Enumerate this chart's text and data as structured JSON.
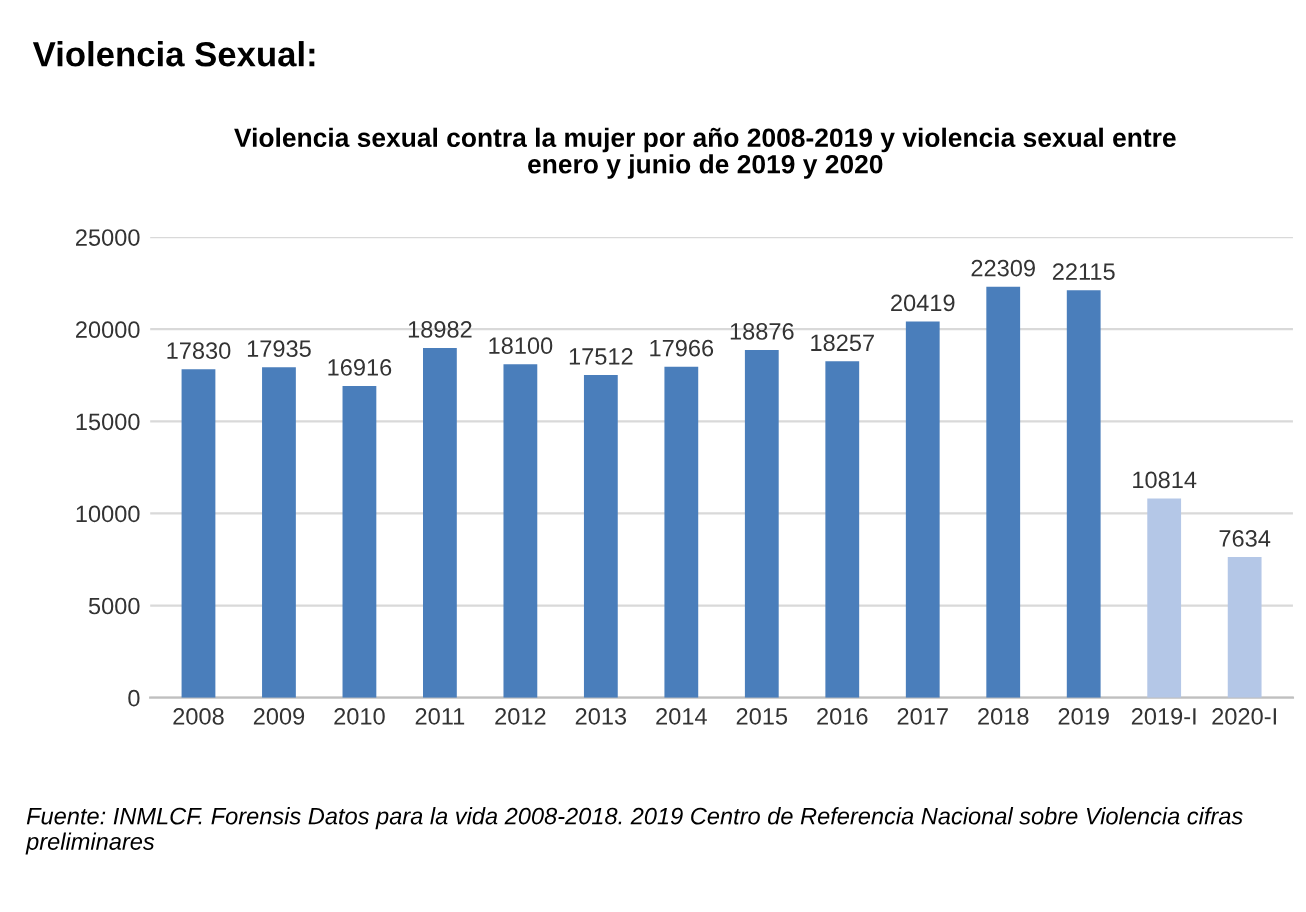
{
  "chart_data": {
    "type": "bar",
    "title": "Violencia Sexual:",
    "subtitle": "Violencia sexual contra la mujer por año 2008-2019 y violencia sexual entre\nenero y junio de 2019 y 2020",
    "categories": [
      "2008",
      "2009",
      "2010",
      "2011",
      "2012",
      "2013",
      "2014",
      "2015",
      "2016",
      "2017",
      "2018",
      "2019",
      "2019-I",
      "2020-I"
    ],
    "values": [
      17830,
      17935,
      16916,
      18982,
      18100,
      17512,
      17966,
      18876,
      18257,
      20419,
      22309,
      22115,
      10814,
      7634
    ],
    "colors": [
      "#4a7ebb",
      "#4a7ebb",
      "#4a7ebb",
      "#4a7ebb",
      "#4a7ebb",
      "#4a7ebb",
      "#4a7ebb",
      "#4a7ebb",
      "#4a7ebb",
      "#4a7ebb",
      "#4a7ebb",
      "#4a7ebb",
      "#b4c7e7",
      "#b4c7e7"
    ],
    "ylim": [
      0,
      25000
    ],
    "yticks": [
      0,
      5000,
      10000,
      15000,
      20000,
      25000
    ],
    "grid": "y",
    "data_labels": true,
    "legend": false,
    "annotations": [
      "Fuente: INMLCF. Forensis Datos para la vida 2008-2018. 2019 Centro de Referencia Nacional sobre Violencia cifras preliminares"
    ]
  }
}
